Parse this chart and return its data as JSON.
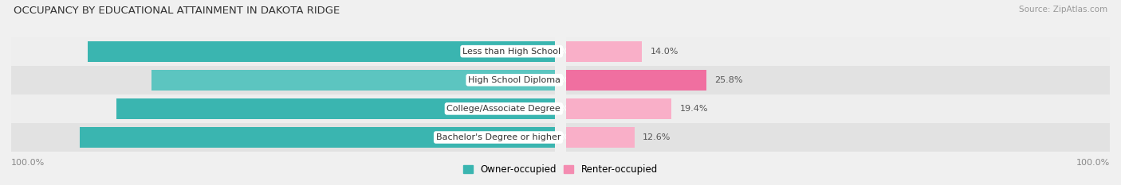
{
  "title": "OCCUPANCY BY EDUCATIONAL ATTAINMENT IN DAKOTA RIDGE",
  "source": "Source: ZipAtlas.com",
  "categories": [
    "Less than High School",
    "High School Diploma",
    "College/Associate Degree",
    "Bachelor's Degree or higher"
  ],
  "owner_pct": [
    86.0,
    74.2,
    80.7,
    87.4
  ],
  "renter_pct": [
    14.0,
    25.8,
    19.4,
    12.6
  ],
  "owner_color": "#3ab5b0",
  "renter_color_light": "#f9afc8",
  "renter_color_dark": "#f06fa0",
  "row_bg_light": "#eeeeee",
  "row_bg_dark": "#e2e2e2",
  "owner_label_color": "white",
  "renter_label_color": "#555555",
  "title_color": "#333333",
  "source_color": "#999999",
  "legend_color_owner": "#3ab5b0",
  "legend_color_renter": "#f48cb1",
  "x_axis_label": "100.0%",
  "figsize": [
    14.06,
    2.33
  ],
  "dpi": 100
}
